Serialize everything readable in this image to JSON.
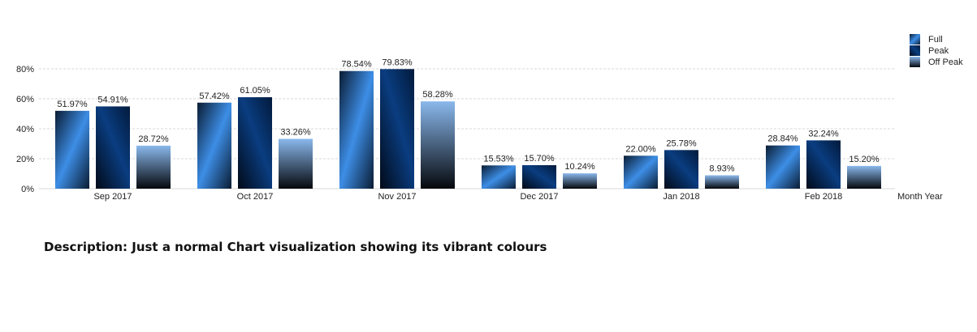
{
  "chart_data": {
    "type": "bar",
    "categories": [
      "Sep 2017",
      "Oct 2017",
      "Nov 2017",
      "Dec 2017",
      "Jan 2018",
      "Feb 2018"
    ],
    "series": [
      {
        "name": "Full",
        "values": [
          51.97,
          57.42,
          78.54,
          15.53,
          22.0,
          28.84
        ],
        "labels": [
          "51.97%",
          "57.42%",
          "78.54%",
          "15.53%",
          "22.00%",
          "28.84%"
        ]
      },
      {
        "name": "Peak",
        "values": [
          54.91,
          61.05,
          79.83,
          15.7,
          25.78,
          32.24
        ],
        "labels": [
          "54.91%",
          "61.05%",
          "79.83%",
          "15.70%",
          "25.78%",
          "32.24%"
        ]
      },
      {
        "name": "Off Peak",
        "values": [
          28.72,
          33.26,
          58.28,
          10.24,
          8.93,
          15.2
        ],
        "labels": [
          "28.72%",
          "33.26%",
          "58.28%",
          "10.24%",
          "8.93%",
          "15.20%"
        ]
      }
    ],
    "xlabel": "Month Year",
    "ylabel": "",
    "ylim": [
      0,
      80
    ],
    "yticks": [
      0,
      20,
      40,
      60,
      80
    ],
    "ytick_labels": [
      "0%",
      "20%",
      "40%",
      "60%",
      "80%"
    ],
    "grid": true,
    "legend_position": "top-right",
    "colors": {
      "full": [
        "#0a1c33",
        "#3d8ee6",
        "#0a1c33"
      ],
      "peak": [
        "#021a3c",
        "#0a3d80",
        "#010a18"
      ],
      "offpeak": [
        "#8ab8ec",
        "#05080d"
      ]
    }
  },
  "description": "Description: Just a normal Chart visualization showing its vibrant colours"
}
